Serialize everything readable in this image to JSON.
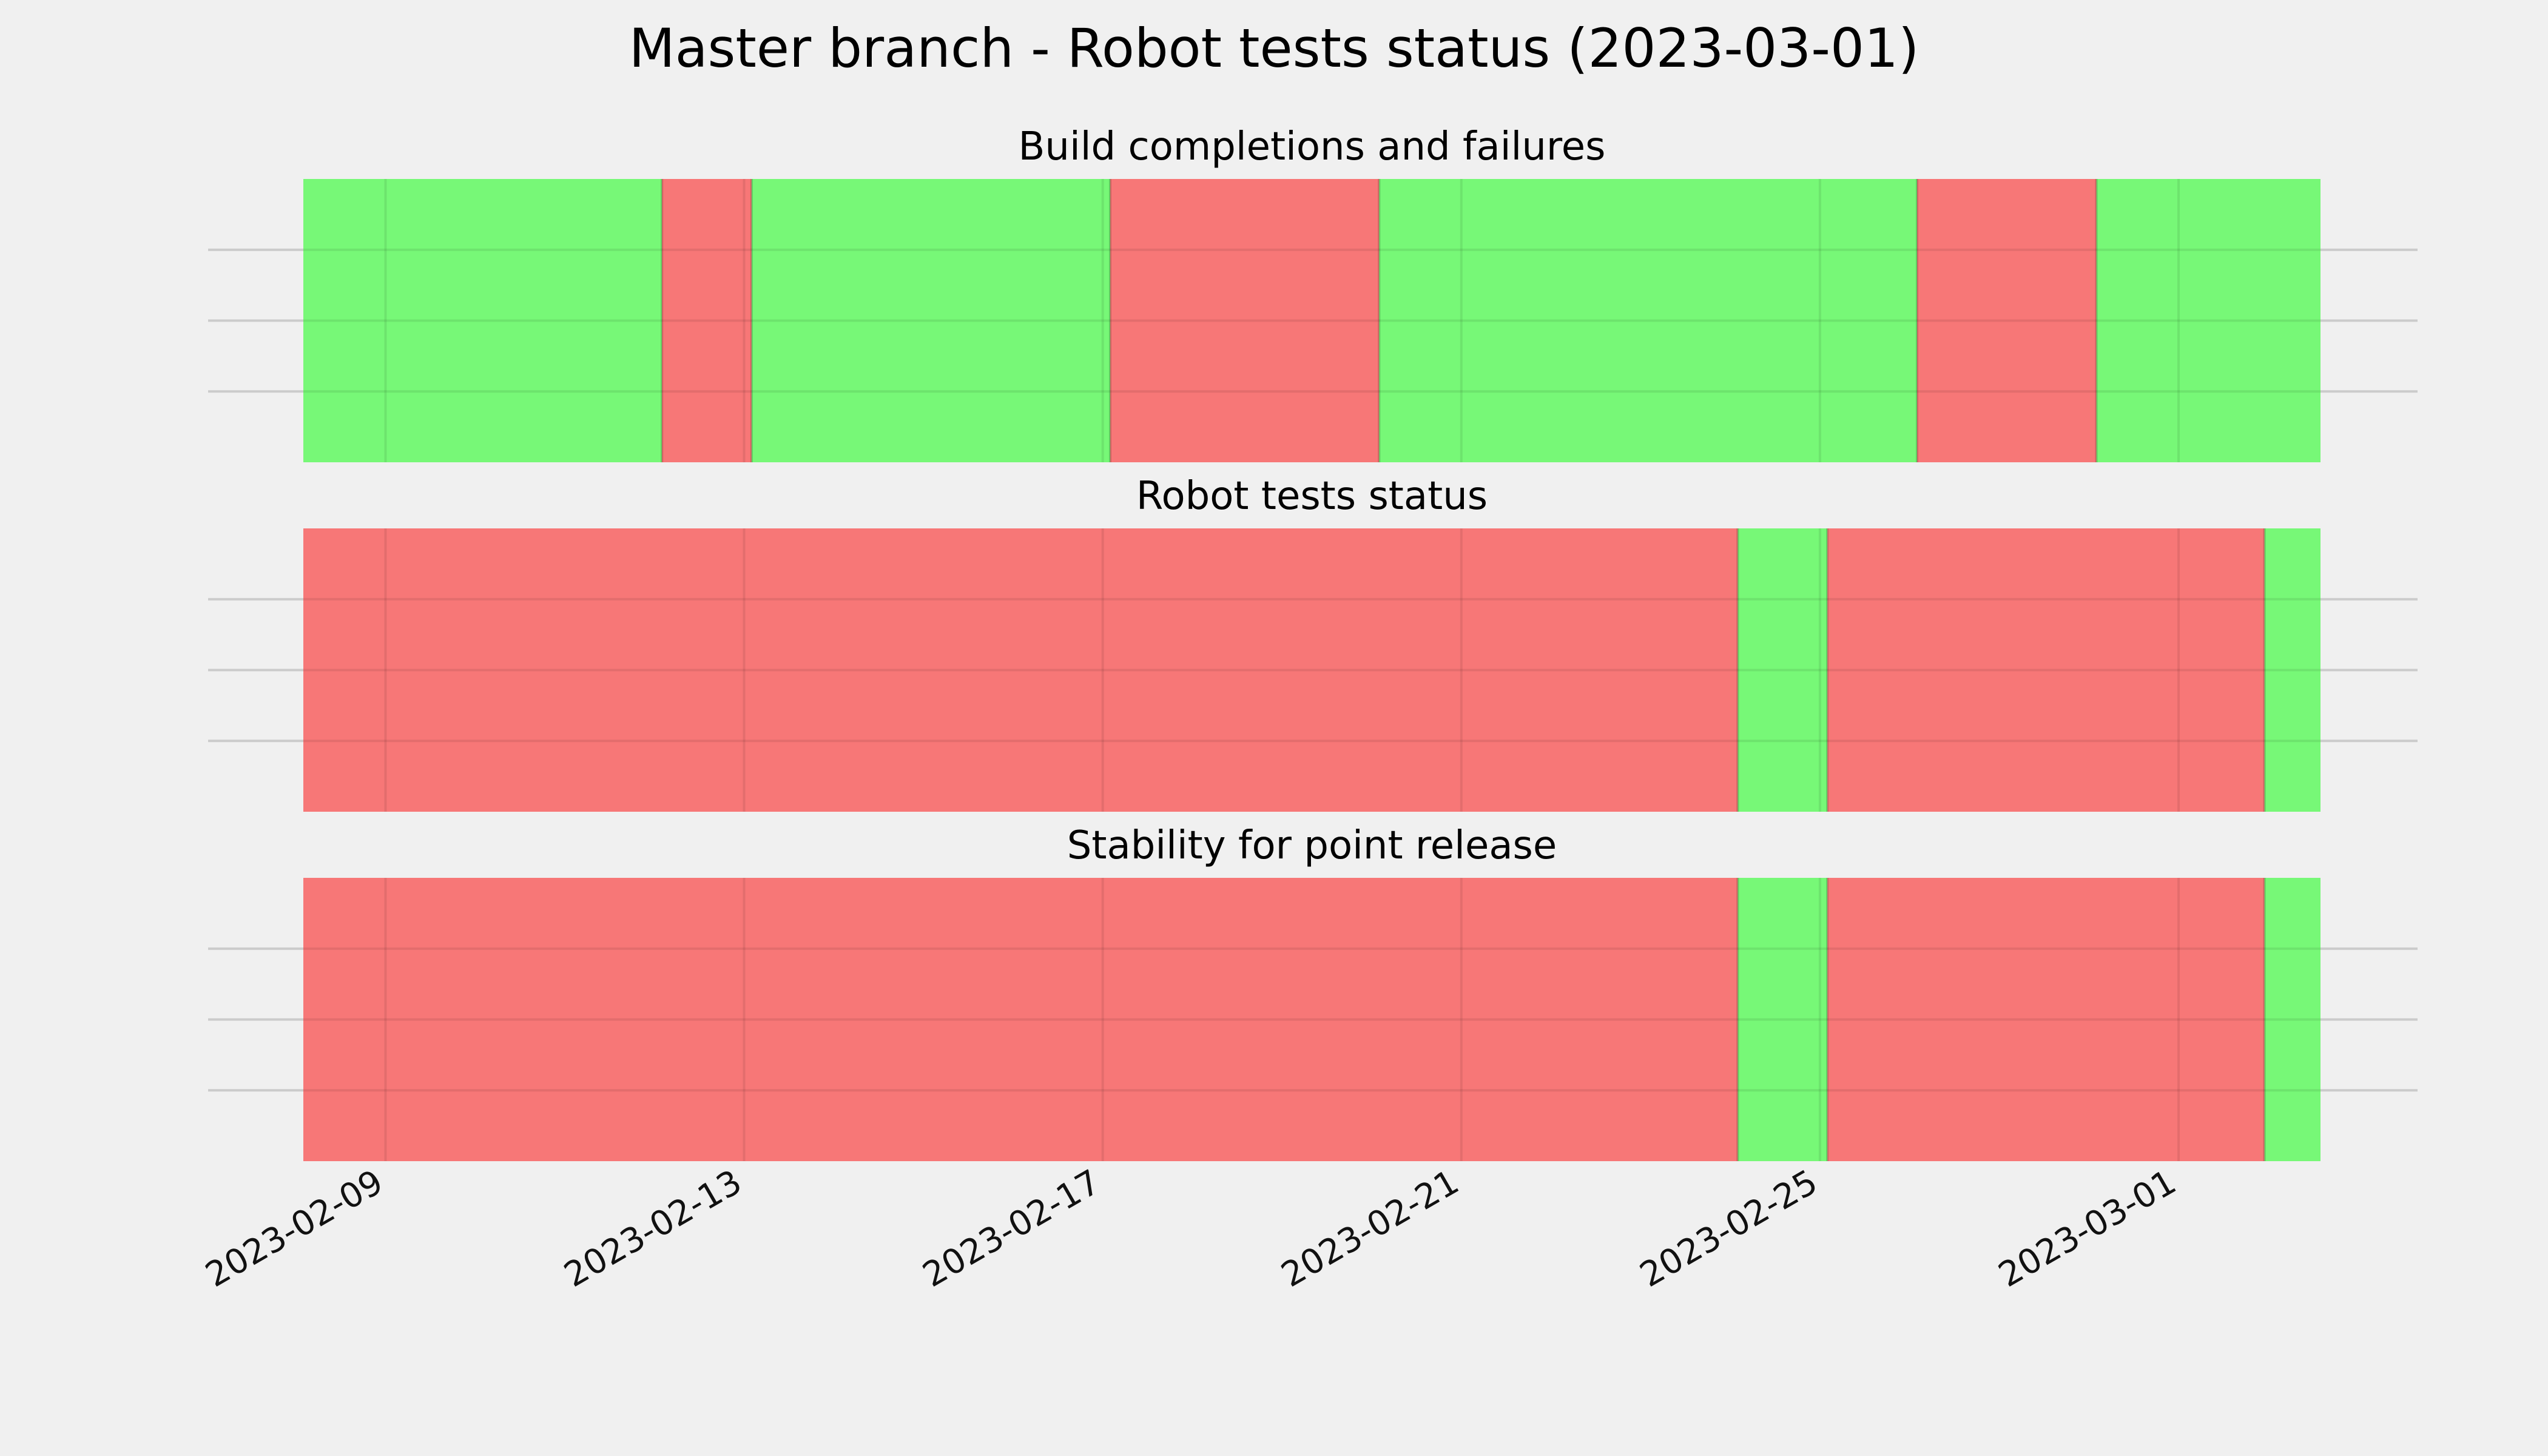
{
  "chart_data": {
    "type": "timeline",
    "title": "Master branch - Robot tests status (2023-03-01)",
    "colors": {
      "pass": "#77f877",
      "fail": "#f77777",
      "background": "#f0f0f0",
      "grid": "#cbcbcb"
    },
    "x_range": [
      "2023-02-08T02:00",
      "2023-03-02T14:00"
    ],
    "x_ticks": [
      "2023-02-09",
      "2023-02-13",
      "2023-02-17",
      "2023-02-21",
      "2023-02-25",
      "2023-03-01"
    ],
    "grid": true,
    "panels": [
      {
        "title": "Build completions and failures",
        "segments": [
          {
            "start": "2023-02-08T02:00",
            "end": "2023-02-12T02:00",
            "status": "pass"
          },
          {
            "start": "2023-02-12T02:00",
            "end": "2023-02-13T02:00",
            "status": "fail"
          },
          {
            "start": "2023-02-13T02:00",
            "end": "2023-02-17T02:00",
            "status": "pass"
          },
          {
            "start": "2023-02-17T02:00",
            "end": "2023-02-20T02:00",
            "status": "fail"
          },
          {
            "start": "2023-02-20T02:00",
            "end": "2023-02-26T02:00",
            "status": "pass"
          },
          {
            "start": "2023-02-26T02:00",
            "end": "2023-02-28T02:00",
            "status": "fail"
          },
          {
            "start": "2023-02-28T02:00",
            "end": "2023-03-02T14:00",
            "status": "pass"
          }
        ]
      },
      {
        "title": "Robot tests status",
        "segments": [
          {
            "start": "2023-02-08T02:00",
            "end": "2023-02-24T02:00",
            "status": "fail"
          },
          {
            "start": "2023-02-24T02:00",
            "end": "2023-02-25T02:00",
            "status": "pass"
          },
          {
            "start": "2023-02-25T02:00",
            "end": "2023-03-01T23:00",
            "status": "fail"
          },
          {
            "start": "2023-03-01T23:00",
            "end": "2023-03-02T14:00",
            "status": "pass"
          }
        ]
      },
      {
        "title": "Stability for point release",
        "segments": [
          {
            "start": "2023-02-08T02:00",
            "end": "2023-02-24T02:00",
            "status": "fail"
          },
          {
            "start": "2023-02-24T02:00",
            "end": "2023-02-25T02:00",
            "status": "pass"
          },
          {
            "start": "2023-02-25T02:00",
            "end": "2023-03-01T23:00",
            "status": "fail"
          },
          {
            "start": "2023-03-01T23:00",
            "end": "2023-03-02T14:00",
            "status": "pass"
          }
        ]
      }
    ]
  }
}
